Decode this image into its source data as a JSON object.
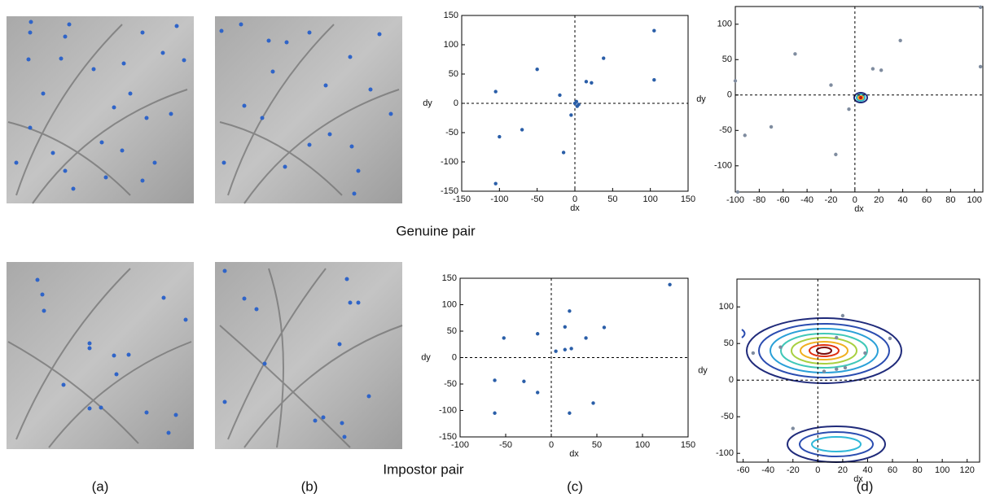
{
  "chart_data": [
    {
      "type": "scatter",
      "xlabel": "dx",
      "ylabel": "dy",
      "color": "#2a5ea8",
      "xlim": [
        -150,
        150
      ],
      "xticks": [
        -150,
        -100,
        -50,
        0,
        50,
        100,
        150
      ],
      "ylim": [
        -150,
        150
      ],
      "yticks": [
        -150,
        -100,
        -50,
        0,
        50,
        100,
        150
      ],
      "x": [
        -105,
        -100,
        -105,
        -70,
        -50,
        -20,
        -15,
        -5,
        0,
        2,
        5,
        3,
        15,
        22,
        38,
        105,
        105
      ],
      "values": [
        20,
        -57,
        -137,
        -45,
        58,
        14,
        -84,
        -20,
        0,
        3,
        -2,
        -5,
        37,
        35,
        77,
        124,
        40
      ]
    },
    {
      "type": "scatter",
      "xlabel": "dx",
      "ylabel": "dy",
      "color": "#7f8c9f",
      "xlim": [
        -100,
        107
      ],
      "xticks": [
        -100,
        -80,
        -60,
        -40,
        -20,
        0,
        20,
        40,
        60,
        80,
        100
      ],
      "ylim": [
        -137,
        125
      ],
      "yticks": [
        -100,
        -50,
        0,
        50,
        100
      ],
      "x": [
        -98,
        -92,
        -70,
        -50,
        -20,
        -16,
        -5,
        15,
        22,
        38,
        105,
        105,
        -100
      ],
      "values": [
        -137,
        -57,
        -45,
        58,
        14,
        -84,
        -20,
        37,
        35,
        77,
        124,
        40,
        20
      ]
    },
    {
      "type": "scatter",
      "xlabel": "dx",
      "ylabel": "dy",
      "color": "#2a5ea8",
      "xlim": [
        -100,
        150
      ],
      "xticks": [
        -100,
        -50,
        0,
        50,
        100,
        150
      ],
      "ylim": [
        -150,
        150
      ],
      "yticks": [
        -150,
        -100,
        -50,
        0,
        50,
        100,
        150
      ],
      "x": [
        -62,
        -62,
        -52,
        -30,
        -15,
        -15,
        5,
        15,
        15,
        20,
        20,
        22,
        38,
        46,
        58,
        130
      ],
      "values": [
        -43,
        -105,
        37,
        -45,
        45,
        -66,
        12,
        15,
        58,
        88,
        -105,
        17,
        37,
        -86,
        57,
        138
      ]
    },
    {
      "type": "scatter",
      "xlabel": "dx",
      "ylabel": "dy",
      "color": "#7f8c9f",
      "xlim": [
        -65,
        130
      ],
      "xticks": [
        -60,
        -40,
        -20,
        0,
        20,
        40,
        60,
        80,
        100,
        120
      ],
      "ylim": [
        -112,
        138
      ],
      "yticks": [
        -100,
        -50,
        0,
        50,
        100
      ],
      "x": [
        -52,
        -30,
        5,
        15,
        15,
        20,
        22,
        38,
        58,
        -20
      ],
      "values": [
        37,
        45,
        12,
        15,
        58,
        88,
        17,
        37,
        57,
        -66
      ]
    }
  ],
  "captions": {
    "genuine": "Genuine pair",
    "impostor": "Impostor pair"
  },
  "panel_labels": [
    "(a)",
    "(b)",
    "(c)",
    "(d)"
  ]
}
